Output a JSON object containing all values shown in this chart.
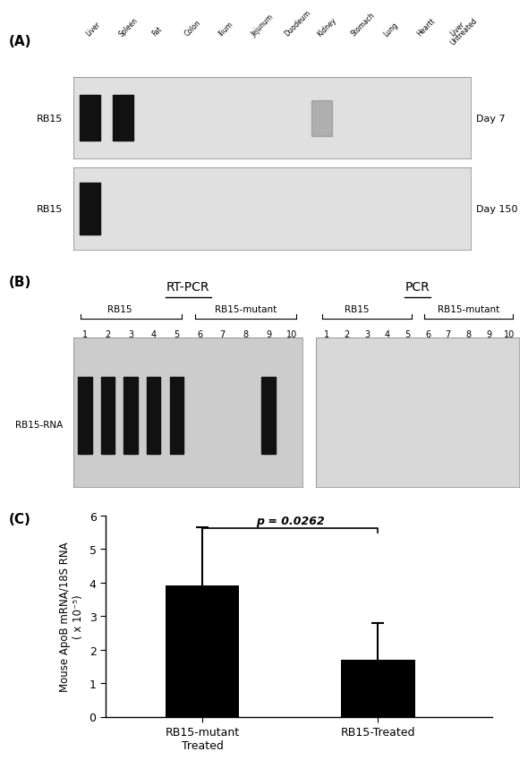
{
  "panel_a": {
    "label": "(A)",
    "lane_labels": [
      "Liver",
      "Spleen",
      "Fat",
      "Colon",
      "Ilium",
      "Jejunum",
      "Duodeum",
      "Kidney",
      "Stomach",
      "Lung",
      "Heartt",
      "Untreated\nLiver"
    ],
    "row_labels": [
      "RB15",
      "RB15"
    ],
    "day_labels": [
      "Day 7",
      "Day 150"
    ],
    "bg_color": "#e0e0e0",
    "band_color": "#111111",
    "faint_band_color": "#888888"
  },
  "panel_b": {
    "label": "(B)",
    "rtpcr_title": "RT-PCR",
    "pcr_title": "PCR",
    "rb15_label": "RB15",
    "rb15mut_label": "RB15-mutant",
    "lane_numbers": [
      1,
      2,
      3,
      4,
      5,
      6,
      7,
      8,
      9,
      10
    ],
    "row_label": "RB15-RNA",
    "band_lanes_rtpcr": [
      0,
      1,
      2,
      3,
      4,
      8
    ],
    "bg_color_rtpcr": "#cccccc",
    "bg_color_pcr": "#d8d8d8",
    "band_color": "#111111"
  },
  "panel_c": {
    "label": "(C)",
    "bar_values": [
      3.9,
      1.7
    ],
    "bar_errors": [
      1.75,
      1.1
    ],
    "bar_labels": [
      "RB15-mutant\nTreated",
      "RB15-Treated"
    ],
    "bar_color": "#000000",
    "ylabel_line1": "Mouse ApoB mRNA/18S RNA",
    "ylabel_line2": "( x 10⁻⁵)",
    "ylim": [
      0,
      6
    ],
    "yticks": [
      0,
      1,
      2,
      3,
      4,
      5,
      6
    ],
    "p_value": "p = 0.0262"
  }
}
